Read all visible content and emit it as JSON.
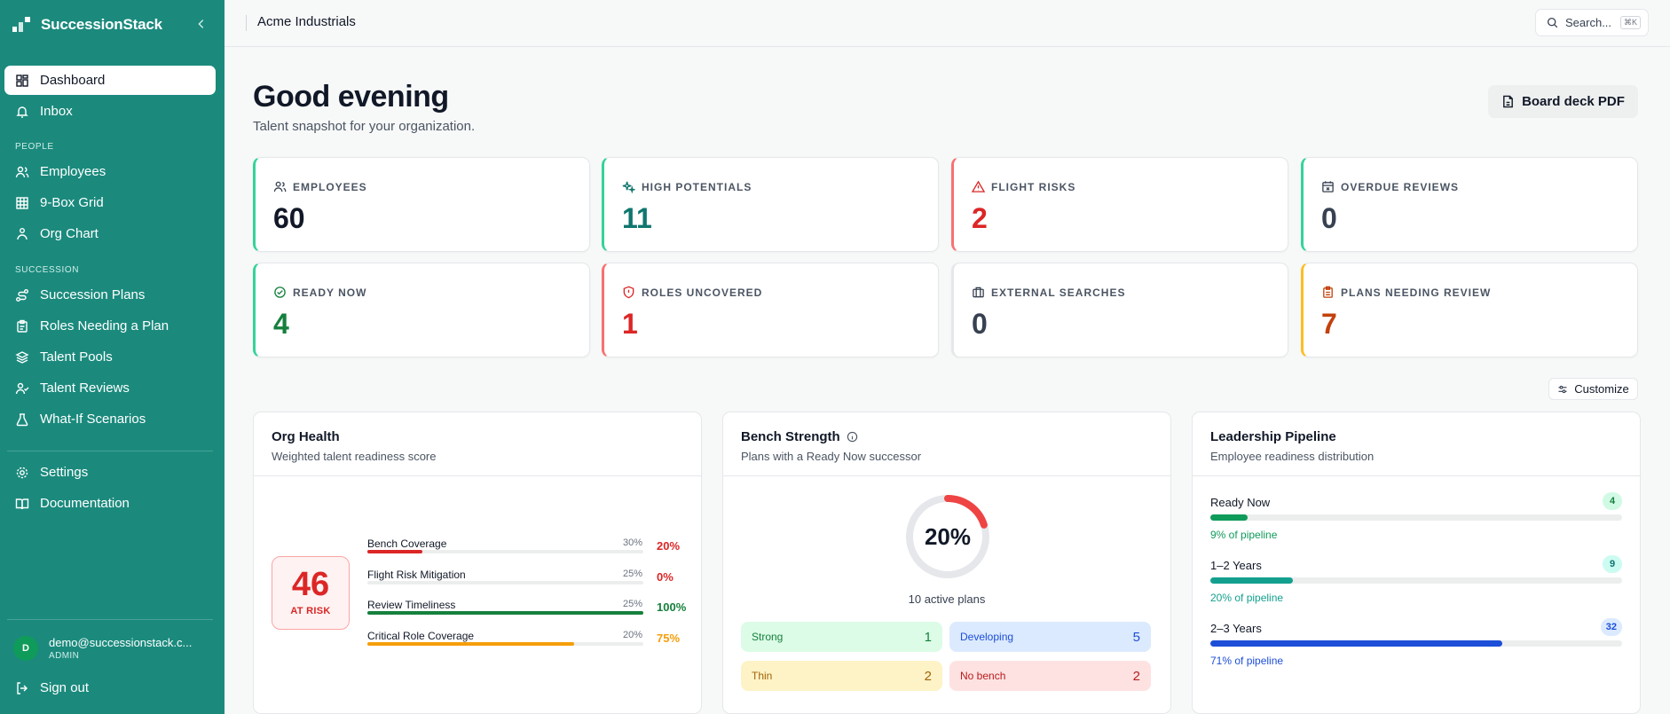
{
  "sidebar": {
    "brand": "SuccessionStack",
    "items": [
      {
        "label": "Dashboard"
      },
      {
        "label": "Inbox"
      },
      {
        "label": "Employees"
      },
      {
        "label": "9-Box Grid"
      },
      {
        "label": "Org Chart"
      },
      {
        "label": "Succession Plans"
      },
      {
        "label": "Roles Needing a Plan"
      },
      {
        "label": "Talent Pools"
      },
      {
        "label": "Talent Reviews"
      },
      {
        "label": "What-If Scenarios"
      },
      {
        "label": "Settings"
      },
      {
        "label": "Documentation"
      }
    ],
    "sections": {
      "people": "PEOPLE",
      "succession": "SUCCESSION"
    },
    "user": {
      "initial": "D",
      "email": "demo@successionstack.c...",
      "role": "ADMIN"
    },
    "sign_out": "Sign out"
  },
  "topbar": {
    "org": "Acme Industrials",
    "search_placeholder": "Search...",
    "search_shortcut": "⌘K"
  },
  "header": {
    "greeting": "Good evening",
    "subtitle": "Talent snapshot for your organization.",
    "board_deck": "Board deck PDF",
    "customize": "Customize"
  },
  "kpis": [
    {
      "label": "EMPLOYEES",
      "value": "60",
      "color": "#111827",
      "accent": "#34d399"
    },
    {
      "label": "HIGH POTENTIALS",
      "value": "11",
      "color": "#0f766e",
      "accent": "#34d399"
    },
    {
      "label": "FLIGHT RISKS",
      "value": "2",
      "color": "#dc2626",
      "accent": "#f87171"
    },
    {
      "label": "OVERDUE REVIEWS",
      "value": "0",
      "color": "#374151",
      "accent": "#34d399"
    },
    {
      "label": "READY NOW",
      "value": "4",
      "color": "#15803d",
      "accent": "#34d399"
    },
    {
      "label": "ROLES UNCOVERED",
      "value": "1",
      "color": "#dc2626",
      "accent": "#f87171"
    },
    {
      "label": "EXTERNAL SEARCHES",
      "value": "0",
      "color": "#374151",
      "accent": "#e5e7eb"
    },
    {
      "label": "PLANS NEEDING REVIEW",
      "value": "7",
      "color": "#c2410c",
      "accent": "#fbbf24"
    }
  ],
  "org_health": {
    "title": "Org Health",
    "subtitle": "Weighted talent readiness score",
    "score": "46",
    "status": "AT RISK",
    "metrics": [
      {
        "name": "Bench Coverage",
        "weight": "30%",
        "pct": "20%",
        "fill": 0.2,
        "color": "#dc2626"
      },
      {
        "name": "Flight Risk Mitigation",
        "weight": "25%",
        "pct": "0%",
        "fill": 0.0,
        "color": "#dc2626"
      },
      {
        "name": "Review Timeliness",
        "weight": "25%",
        "pct": "100%",
        "fill": 1.0,
        "color": "#15803d"
      },
      {
        "name": "Critical Role Coverage",
        "weight": "20%",
        "pct": "75%",
        "fill": 0.75,
        "color": "#f59e0b"
      }
    ]
  },
  "bench": {
    "title": "Bench Strength",
    "subtitle": "Plans with a Ready Now successor",
    "pct": "20%",
    "fraction": 0.2,
    "active_plans": "10 active plans",
    "pills": [
      {
        "label": "Strong",
        "value": "1",
        "bg": "#dcfce7",
        "fg": "#15803d"
      },
      {
        "label": "Developing",
        "value": "5",
        "bg": "#dbeafe",
        "fg": "#1d4ed8"
      },
      {
        "label": "Thin",
        "value": "2",
        "bg": "#fef3c7",
        "fg": "#a16207"
      },
      {
        "label": "No bench",
        "value": "2",
        "bg": "#fee2e2",
        "fg": "#b91c1c"
      }
    ]
  },
  "pipeline": {
    "title": "Leadership Pipeline",
    "subtitle": "Employee readiness distribution",
    "rows": [
      {
        "label": "Ready Now",
        "count": "4",
        "pct_label": "9% of pipeline",
        "fill": 0.09,
        "color": "#0f9b5a",
        "badge_bg": "#d1fae5",
        "badge_fg": "#15803d"
      },
      {
        "label": "1–2 Years",
        "count": "9",
        "pct_label": "20% of pipeline",
        "fill": 0.2,
        "color": "#14a08e",
        "badge_bg": "#ccfbf1",
        "badge_fg": "#0f766e"
      },
      {
        "label": "2–3 Years",
        "count": "32",
        "pct_label": "71% of pipeline",
        "fill": 0.71,
        "color": "#1d4ed8",
        "badge_bg": "#dbeafe",
        "badge_fg": "#1d4ed8"
      }
    ]
  }
}
